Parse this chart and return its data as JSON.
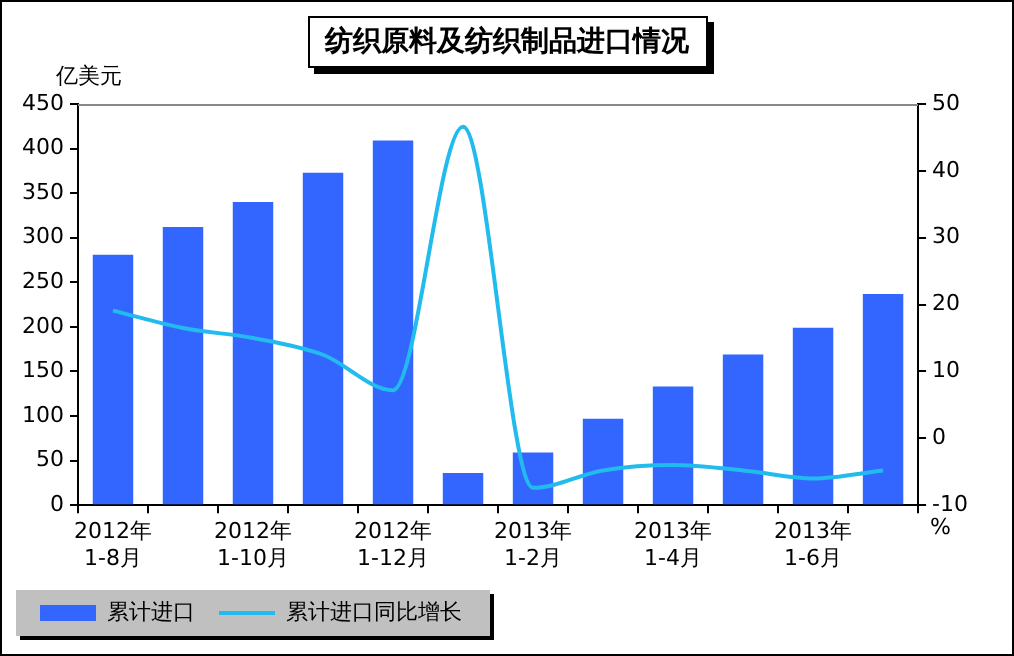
{
  "chart_data": {
    "type": "bar",
    "title": "纺织原料及纺织制品进口情况",
    "ylabel": "亿美元",
    "y2label": "%",
    "categories": [
      "2012年\n1-8月",
      null,
      "2012年\n1-10月",
      null,
      "2012年\n1-12月",
      null,
      "2013年\n1-2月",
      null,
      "2013年\n1-4月",
      null,
      "2013年\n1-6月",
      null
    ],
    "series": [
      {
        "name": "累计进口",
        "color": "#3366ff",
        "values": [
          281,
          312,
          340,
          373,
          409,
          36,
          59,
          97,
          133,
          169,
          199,
          237
        ]
      },
      {
        "name": "累计进口同比增长",
        "type": "line",
        "axis": "y2",
        "color": "#22bbee",
        "values": [
          19.1,
          16.5,
          15,
          12.5,
          7.2,
          46.6,
          -7.4,
          -4.8,
          -4,
          -4.8,
          -6,
          -4.8
        ]
      }
    ],
    "ylim": [
      0,
      450
    ],
    "yticks": [
      0,
      50,
      100,
      150,
      200,
      250,
      300,
      350,
      400,
      450
    ],
    "y2lim": [
      -10,
      50
    ],
    "y2ticks": [
      -10,
      0,
      10,
      20,
      30,
      40,
      50
    ],
    "grid": false,
    "legend": "bottom left",
    "marker": "none"
  }
}
